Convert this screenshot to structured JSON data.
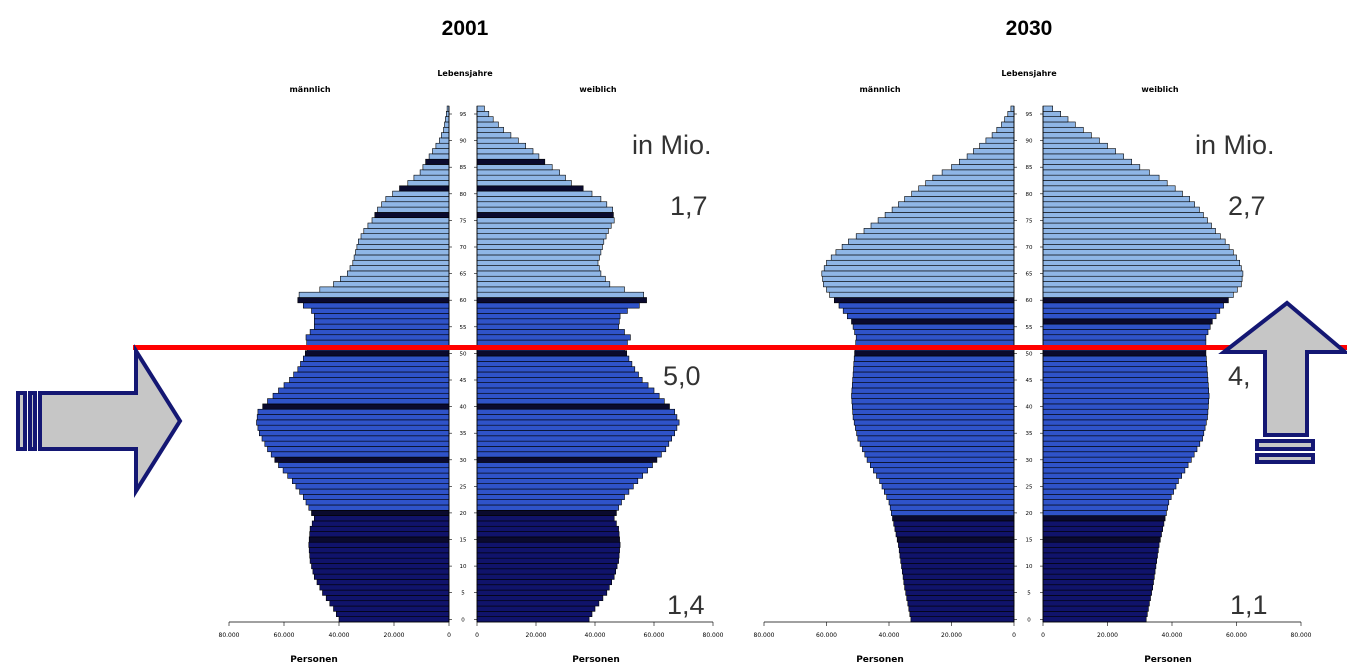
{
  "colors": {
    "age_0_19": "#10136b",
    "age_20_59": "#2f53c9",
    "age_60_plus": "#8fb6e6",
    "bar_outline": "#000000",
    "reference_line": "#ff0000",
    "arrow_fill": "#c6c6c6",
    "arrow_outline": "#141773"
  },
  "icons": {
    "left_arrow": "right-arrow-icon",
    "right_arrow": "up-arrow-icon"
  },
  "chart_data": [
    {
      "type": "bar",
      "orientation": "horizontal-population-pyramid",
      "title": "2001",
      "center_label": "Lebensjahre",
      "left_label": "männlich",
      "right_label": "weiblich",
      "xlabel_left": "Personen",
      "xlabel_right": "Personen",
      "unit_label": "in Mio.",
      "y_ticks": [
        "0",
        "5",
        "10",
        "15",
        "20",
        "25",
        "30",
        "35",
        "40",
        "45",
        "50",
        "55",
        "60",
        "65",
        "70",
        "75",
        "80",
        "85",
        "90",
        "95"
      ],
      "x_ticks_left": [
        "80.000",
        "60.000",
        "40.000",
        "20.000",
        "0"
      ],
      "x_ticks_right": [
        "0",
        "20.000",
        "40.000",
        "60.000",
        "80.000"
      ],
      "xlim": [
        0,
        80000
      ],
      "ylim": [
        0,
        96
      ],
      "grid": false,
      "group_totals": [
        {
          "label": "1,7",
          "group": "60+"
        },
        {
          "label": "5,0",
          "group": "20-59"
        },
        {
          "label": "1,4",
          "group": "0-19"
        }
      ],
      "anchors": {
        "male": [
          [
            0,
            40000
          ],
          [
            2,
            42000
          ],
          [
            5,
            46000
          ],
          [
            8,
            49000
          ],
          [
            11,
            50500
          ],
          [
            14,
            51000
          ],
          [
            17,
            50500
          ],
          [
            19,
            49000
          ],
          [
            21,
            51000
          ],
          [
            23,
            53000
          ],
          [
            26,
            57000
          ],
          [
            29,
            62000
          ],
          [
            32,
            66000
          ],
          [
            35,
            69000
          ],
          [
            37,
            70000
          ],
          [
            39,
            69500
          ],
          [
            41,
            66000
          ],
          [
            43,
            62000
          ],
          [
            45,
            58000
          ],
          [
            47,
            55000
          ],
          [
            49,
            53000
          ],
          [
            51,
            51500
          ],
          [
            53,
            52000
          ],
          [
            55,
            49000
          ],
          [
            57,
            49000
          ],
          [
            58,
            50000
          ],
          [
            59,
            53000
          ],
          [
            60,
            55000
          ],
          [
            61,
            54500
          ],
          [
            62,
            47000
          ],
          [
            63,
            42000
          ],
          [
            65,
            37000
          ],
          [
            67,
            35000
          ],
          [
            69,
            34000
          ],
          [
            71,
            33000
          ],
          [
            73,
            31000
          ],
          [
            75,
            28000
          ],
          [
            77,
            26000
          ],
          [
            79,
            23000
          ],
          [
            81,
            18000
          ],
          [
            82,
            15000
          ],
          [
            84,
            10500
          ],
          [
            86,
            8500
          ],
          [
            88,
            6000
          ],
          [
            90,
            3500
          ],
          [
            92,
            2000
          ],
          [
            94,
            1300
          ],
          [
            96,
            700
          ]
        ],
        "female": [
          [
            0,
            38000
          ],
          [
            2,
            40000
          ],
          [
            5,
            44000
          ],
          [
            8,
            46500
          ],
          [
            11,
            48000
          ],
          [
            14,
            48500
          ],
          [
            17,
            48000
          ],
          [
            19,
            46500
          ],
          [
            21,
            48000
          ],
          [
            23,
            50000
          ],
          [
            26,
            54500
          ],
          [
            29,
            59500
          ],
          [
            32,
            64000
          ],
          [
            35,
            67000
          ],
          [
            37,
            68500
          ],
          [
            39,
            67000
          ],
          [
            41,
            63500
          ],
          [
            43,
            60000
          ],
          [
            45,
            56000
          ],
          [
            47,
            53500
          ],
          [
            49,
            51500
          ],
          [
            51,
            50000
          ],
          [
            53,
            52000
          ],
          [
            55,
            48000
          ],
          [
            57,
            48500
          ],
          [
            58,
            51000
          ],
          [
            59,
            55000
          ],
          [
            60,
            57500
          ],
          [
            61,
            56500
          ],
          [
            62,
            50000
          ],
          [
            63,
            45000
          ],
          [
            65,
            42000
          ],
          [
            67,
            41000
          ],
          [
            69,
            42000
          ],
          [
            71,
            43000
          ],
          [
            73,
            44500
          ],
          [
            75,
            46500
          ],
          [
            77,
            46000
          ],
          [
            79,
            42000
          ],
          [
            81,
            36000
          ],
          [
            82,
            32000
          ],
          [
            84,
            28000
          ],
          [
            86,
            23000
          ],
          [
            88,
            19000
          ],
          [
            90,
            14000
          ],
          [
            92,
            9000
          ],
          [
            94,
            5500
          ],
          [
            96,
            2500
          ]
        ]
      },
      "dark_rows": [
        15,
        20,
        30,
        40,
        50,
        60,
        76,
        81,
        86
      ]
    },
    {
      "type": "bar",
      "orientation": "horizontal-population-pyramid",
      "title": "2030",
      "center_label": "Lebensjahre",
      "left_label": "männlich",
      "right_label": "weiblich",
      "xlabel_left": "Personen",
      "xlabel_right": "Personen",
      "unit_label": "in Mio.",
      "y_ticks": [
        "0",
        "5",
        "10",
        "15",
        "20",
        "25",
        "30",
        "35",
        "40",
        "45",
        "50",
        "55",
        "60",
        "65",
        "70",
        "75",
        "80",
        "85",
        "90",
        "95"
      ],
      "x_ticks_left": [
        "80.000",
        "60.000",
        "40.000",
        "20.000",
        "0"
      ],
      "x_ticks_right": [
        "0",
        "20.000",
        "40.000",
        "60.000",
        "80.000"
      ],
      "xlim": [
        0,
        80000
      ],
      "ylim": [
        0,
        96
      ],
      "grid": false,
      "group_totals": [
        {
          "label": "2,7",
          "group": "60+"
        },
        {
          "label": "4,",
          "group": "20-59"
        },
        {
          "label": "1,1",
          "group": "0-19"
        }
      ],
      "anchors": {
        "male": [
          [
            0,
            33000
          ],
          [
            3,
            34000
          ],
          [
            6,
            35000
          ],
          [
            10,
            36000
          ],
          [
            14,
            37000
          ],
          [
            18,
            38500
          ],
          [
            22,
            40000
          ],
          [
            26,
            43000
          ],
          [
            30,
            47000
          ],
          [
            34,
            50000
          ],
          [
            38,
            51500
          ],
          [
            42,
            52000
          ],
          [
            46,
            51500
          ],
          [
            50,
            51000
          ],
          [
            53,
            50500
          ],
          [
            56,
            52000
          ],
          [
            59,
            56000
          ],
          [
            61,
            59000
          ],
          [
            63,
            61000
          ],
          [
            65,
            61500
          ],
          [
            67,
            60000
          ],
          [
            69,
            57000
          ],
          [
            71,
            53000
          ],
          [
            73,
            48000
          ],
          [
            75,
            43500
          ],
          [
            77,
            39000
          ],
          [
            79,
            35000
          ],
          [
            81,
            30500
          ],
          [
            83,
            26000
          ],
          [
            85,
            20000
          ],
          [
            87,
            15000
          ],
          [
            89,
            11000
          ],
          [
            91,
            7000
          ],
          [
            93,
            4000
          ],
          [
            95,
            2000
          ],
          [
            96,
            1000
          ]
        ],
        "female": [
          [
            0,
            32000
          ],
          [
            3,
            33000
          ],
          [
            6,
            34000
          ],
          [
            10,
            35000
          ],
          [
            14,
            36000
          ],
          [
            18,
            37500
          ],
          [
            22,
            39000
          ],
          [
            26,
            42000
          ],
          [
            30,
            46000
          ],
          [
            34,
            49500
          ],
          [
            38,
            51000
          ],
          [
            42,
            51500
          ],
          [
            46,
            51000
          ],
          [
            50,
            50500
          ],
          [
            53,
            50500
          ],
          [
            56,
            52500
          ],
          [
            59,
            56000
          ],
          [
            61,
            59000
          ],
          [
            63,
            61500
          ],
          [
            65,
            62000
          ],
          [
            67,
            61000
          ],
          [
            69,
            59000
          ],
          [
            71,
            56500
          ],
          [
            73,
            53500
          ],
          [
            75,
            51000
          ],
          [
            77,
            48500
          ],
          [
            79,
            45500
          ],
          [
            81,
            41000
          ],
          [
            83,
            36000
          ],
          [
            85,
            30000
          ],
          [
            87,
            25000
          ],
          [
            89,
            20000
          ],
          [
            91,
            15000
          ],
          [
            93,
            10000
          ],
          [
            95,
            5500
          ],
          [
            96,
            3000
          ]
        ]
      },
      "dark_rows": [
        15,
        19,
        50,
        56,
        60
      ]
    }
  ]
}
